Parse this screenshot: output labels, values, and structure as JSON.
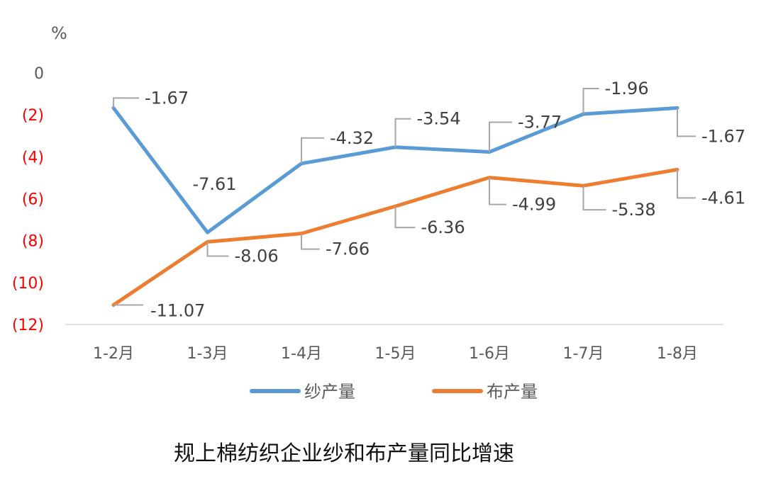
{
  "chart_data": {
    "type": "line",
    "title": "规上棉纺织企业纱和布产量同比增速",
    "ylabel": "%",
    "categories": [
      "1-2月",
      "1-3月",
      "1-4月",
      "1-5月",
      "1-6月",
      "1-7月",
      "1-8月"
    ],
    "ylim": [
      -12,
      0
    ],
    "yticks": [
      0,
      -2,
      -4,
      -6,
      -8,
      -10,
      -12
    ],
    "ytick_labels": [
      "0",
      "(2)",
      "(4)",
      "(6)",
      "(8)",
      "(10)",
      "(12)"
    ],
    "negative_tick_color": "#ff0000",
    "grid": false,
    "legend_position": "bottom",
    "series": [
      {
        "name": "纱产量",
        "color": "#5b9bd5",
        "values": [
          -1.67,
          -7.61,
          -4.32,
          -3.54,
          -3.77,
          -1.96,
          -1.67
        ],
        "labels": [
          "-1.67",
          "-7.61",
          "-4.32",
          "-3.54",
          "-3.77",
          "-1.96",
          "-1.67"
        ]
      },
      {
        "name": "布产量",
        "color": "#ed7d31",
        "values": [
          -11.07,
          -8.06,
          -7.66,
          -6.36,
          -4.99,
          -5.38,
          -4.61
        ],
        "labels": [
          "-11.07",
          "-8.06",
          "-7.66",
          "-6.36",
          "-4.99",
          "-5.38",
          "-4.61"
        ]
      }
    ]
  }
}
